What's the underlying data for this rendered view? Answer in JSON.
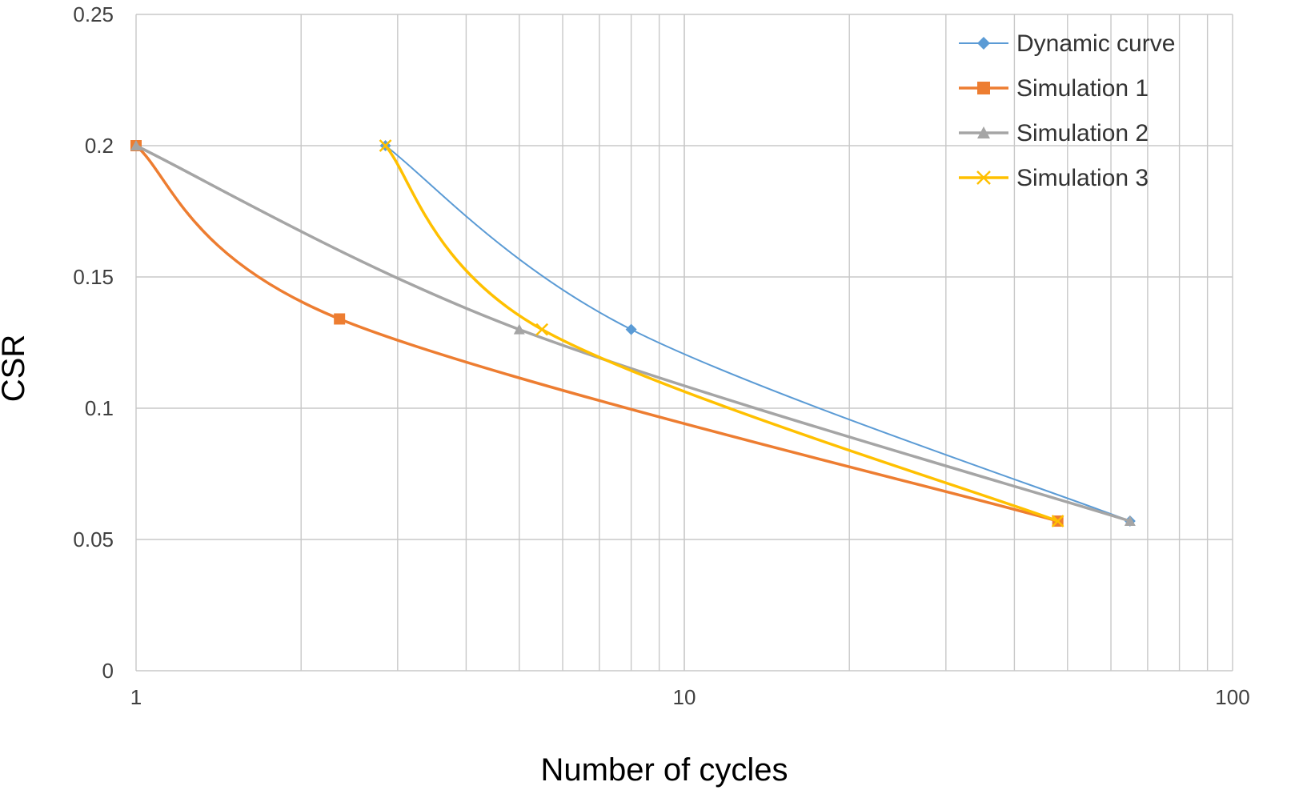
{
  "chart_data": {
    "type": "line",
    "title": "",
    "xlabel": "Number of cycles",
    "ylabel": "CSR",
    "xscale": "log",
    "xlim": [
      1,
      100
    ],
    "ylim": [
      0,
      0.25
    ],
    "grid": true,
    "legend_position": "top-right",
    "x_ticks": [
      1,
      10,
      100
    ],
    "x_tick_labels": [
      "1",
      "10",
      "100"
    ],
    "y_ticks": [
      0,
      0.05,
      0.1,
      0.15,
      0.2,
      0.25
    ],
    "y_tick_labels": [
      "0",
      "0.05",
      "0.1",
      "0.15",
      "0.2",
      "0.25"
    ],
    "series": [
      {
        "name": "Dynamic curve",
        "color": "#5B9BD5",
        "marker": "diamond",
        "x": [
          2.85,
          8.0,
          65
        ],
        "y": [
          0.2,
          0.13,
          0.057
        ]
      },
      {
        "name": "Simulation 1",
        "color": "#ED7D31",
        "marker": "square",
        "x": [
          1.0,
          2.35,
          48
        ],
        "y": [
          0.2,
          0.134,
          0.057
        ]
      },
      {
        "name": "Simulation 2",
        "color": "#A5A5A5",
        "marker": "triangle",
        "x": [
          1.0,
          5.0,
          65
        ],
        "y": [
          0.2,
          0.13,
          0.057
        ]
      },
      {
        "name": "Simulation 3",
        "color": "#FFC000",
        "marker": "x",
        "x": [
          2.85,
          5.5,
          48
        ],
        "y": [
          0.2,
          0.13,
          0.057
        ]
      }
    ]
  }
}
